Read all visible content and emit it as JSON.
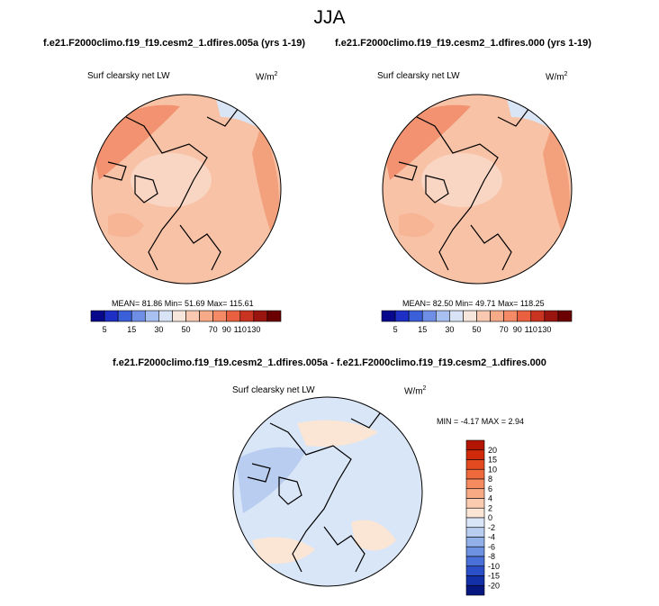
{
  "season": "JJA",
  "panels": [
    {
      "case": "f.e21.F2000climo.f19_f19.cesm2_1.dfires.005a (yrs 1-19)",
      "variable": "Surf clearsky net LW",
      "units": "W/m",
      "units_exp": "2",
      "stats": "MEAN=  81.86  Min=  51.69  Max= 115.61"
    },
    {
      "case": "f.e21.F2000climo.f19_f19.cesm2_1.dfires.000 (yrs 1-19)",
      "variable": "Surf clearsky net LW",
      "units": "W/m",
      "units_exp": "2",
      "stats": "MEAN=  82.50  Min=  49.71  Max= 118.25"
    }
  ],
  "diff": {
    "title": "f.e21.F2000climo.f19_f19.cesm2_1.dfires.005a - f.e21.F2000climo.f19_f19.cesm2_1.dfires.000",
    "variable": "Surf clearsky net LW",
    "units": "W/m",
    "units_exp": "2",
    "stats": "MIN = -4.17 MAX =   2.94"
  },
  "chart_data": [
    {
      "type": "heatmap",
      "projection": "north polar stereographic",
      "title": "f.e21.F2000climo.f19_f19.cesm2_1.dfires.005a (yrs 1-19)",
      "field": "Surf clearsky net LW",
      "units": "W/m2",
      "mean": 81.86,
      "min": 51.69,
      "max": 115.61,
      "colorbar": {
        "orientation": "horizontal",
        "labels": [
          "5",
          "15",
          "30",
          "50",
          "70",
          "90",
          "110",
          "130"
        ],
        "colors": [
          "#08088c",
          "#1d2fc4",
          "#3b5fd9",
          "#6f8fe6",
          "#a7c0ef",
          "#d8e4f6",
          "#f6e6dc",
          "#f8c9b0",
          "#f7aa88",
          "#f48b66",
          "#e8603f",
          "#c93421",
          "#9a1410",
          "#6b0000"
        ]
      }
    },
    {
      "type": "heatmap",
      "projection": "north polar stereographic",
      "title": "f.e21.F2000climo.f19_f19.cesm2_1.dfires.000 (yrs 1-19)",
      "field": "Surf clearsky net LW",
      "units": "W/m2",
      "mean": 82.5,
      "min": 49.71,
      "max": 118.25,
      "colorbar": {
        "orientation": "horizontal",
        "labels": [
          "5",
          "15",
          "30",
          "50",
          "70",
          "90",
          "110",
          "130"
        ],
        "colors": [
          "#08088c",
          "#1d2fc4",
          "#3b5fd9",
          "#6f8fe6",
          "#a7c0ef",
          "#d8e4f6",
          "#f6e6dc",
          "#f8c9b0",
          "#f7aa88",
          "#f48b66",
          "#e8603f",
          "#c93421",
          "#9a1410",
          "#6b0000"
        ]
      }
    },
    {
      "type": "heatmap",
      "projection": "north polar stereographic",
      "title": "f.e21.F2000climo.f19_f19.cesm2_1.dfires.005a - f.e21.F2000climo.f19_f19.cesm2_1.dfires.000",
      "field": "Surf clearsky net LW",
      "units": "W/m2",
      "min": -4.17,
      "max": 2.94,
      "colorbar": {
        "orientation": "vertical",
        "labels": [
          "20",
          "15",
          "10",
          "8",
          "6",
          "4",
          "2",
          "0",
          "-2",
          "-4",
          "-6",
          "-8",
          "-10",
          "-15",
          "-20"
        ],
        "colors": [
          "#b21500",
          "#d12a0a",
          "#e44a1f",
          "#ee6a3d",
          "#f48a5e",
          "#f8aa85",
          "#fbcbaf",
          "#fbe5d5",
          "#d9e6f7",
          "#b8cdf0",
          "#93b1e9",
          "#6e92e2",
          "#4a70d9",
          "#2a4fc9",
          "#1430a8",
          "#061880"
        ]
      }
    }
  ]
}
